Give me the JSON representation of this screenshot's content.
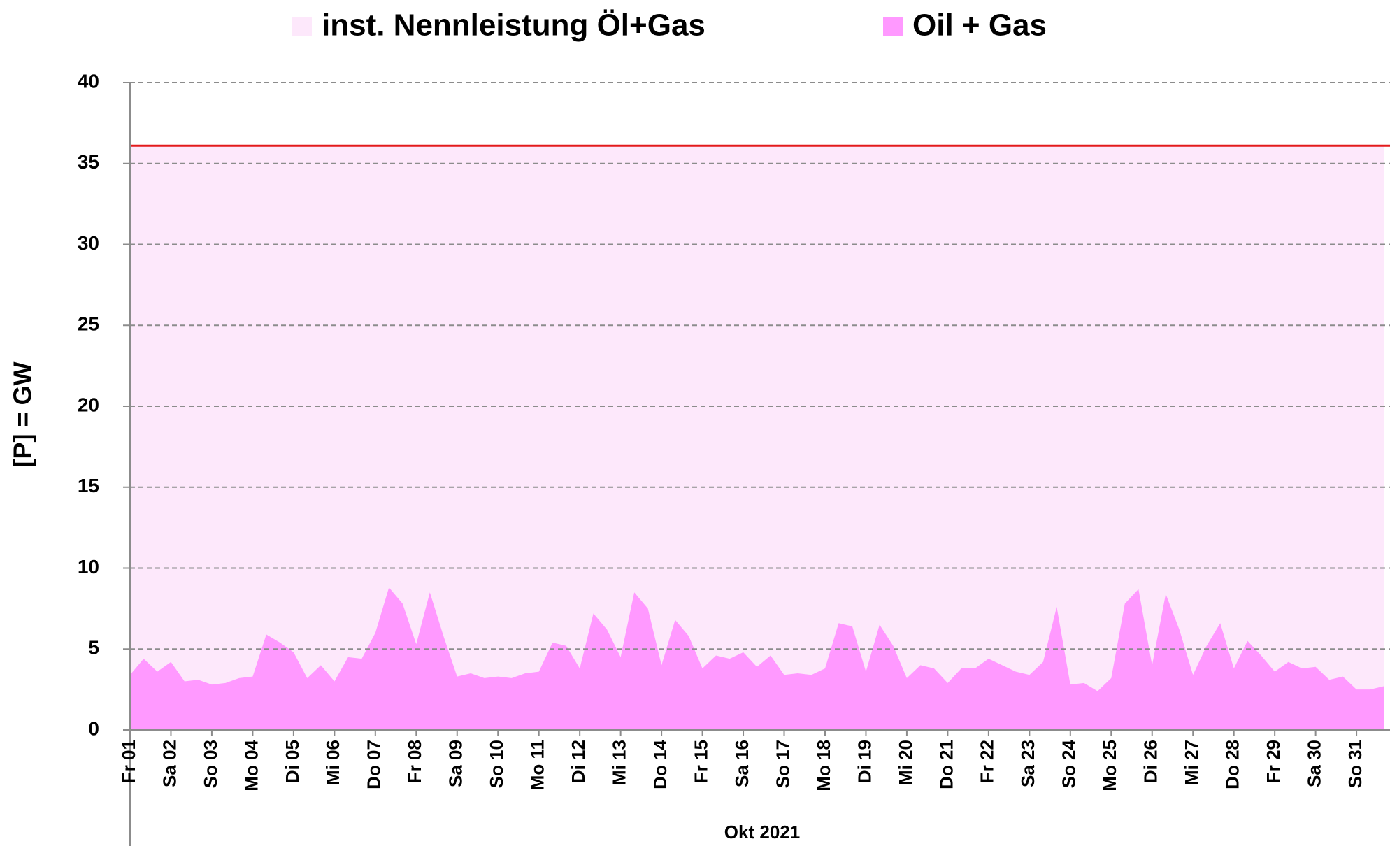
{
  "chart_data": {
    "type": "area",
    "x_label": "Okt 2021",
    "y_label": "[P]  = GW",
    "legend": "top",
    "grid": true,
    "ylim": [
      0,
      40
    ],
    "yticks": [
      0,
      5,
      10,
      15,
      20,
      25,
      30,
      35,
      40
    ],
    "categories": [
      "Fr 01",
      null,
      null,
      "Sa 02",
      null,
      null,
      "So 03",
      null,
      null,
      "Mo 04",
      null,
      null,
      "Di 05",
      null,
      null,
      "Mi 06",
      null,
      null,
      "Do 07",
      null,
      null,
      "Fr 08",
      null,
      null,
      "Sa 09",
      null,
      null,
      "So 10",
      null,
      null,
      "Mo 11",
      null,
      null,
      "Di 12",
      null,
      null,
      "Mi 13",
      null,
      null,
      "Do 14",
      null,
      null,
      "Fr 15",
      null,
      null,
      "Sa 16",
      null,
      null,
      "So 17",
      null,
      null,
      "Mo 18",
      null,
      null,
      "Di 19",
      null,
      null,
      "Mi 20",
      null,
      null,
      "Do 21",
      null,
      null,
      "Fr 22",
      null,
      null,
      "Sa 23",
      null,
      null,
      "So 24",
      null,
      null,
      "Mo 25",
      null,
      null,
      "Di 26",
      null,
      null,
      "Mi 27",
      null,
      null,
      "Do 28",
      null,
      null,
      "Fr 29",
      null,
      null,
      "Sa 30",
      null,
      null,
      "So 31",
      null,
      null
    ],
    "series": [
      {
        "name": "inst. Nennleistung Öl+Gas",
        "color": "#fde8fb",
        "line_color": "#e31a1c",
        "values": [
          36.1,
          36.1,
          36.1,
          36.1,
          36.1,
          36.1,
          36.1,
          36.1,
          36.1,
          36.1,
          36.1,
          36.1,
          36.1,
          36.1,
          36.1,
          36.1,
          36.1,
          36.1,
          36.1,
          36.1,
          36.1,
          36.1,
          36.1,
          36.1,
          36.1,
          36.1,
          36.1,
          36.1,
          36.1,
          36.1,
          36.1,
          36.1,
          36.1,
          36.1,
          36.1,
          36.1,
          36.1,
          36.1,
          36.1,
          36.1,
          36.1,
          36.1,
          36.1,
          36.1,
          36.1,
          36.1,
          36.1,
          36.1,
          36.1,
          36.1,
          36.1,
          36.1,
          36.1,
          36.1,
          36.1,
          36.1,
          36.1,
          36.1,
          36.1,
          36.1,
          36.1,
          36.1,
          36.1,
          36.1,
          36.1,
          36.1,
          36.1,
          36.1,
          36.1,
          36.1,
          36.1,
          36.1,
          36.1,
          36.1,
          36.1,
          36.1,
          36.1,
          36.1,
          36.1,
          36.1,
          36.1,
          36.1,
          36.1,
          36.1,
          36.1,
          36.1,
          36.1,
          36.1,
          36.1,
          36.1,
          36.1,
          36.1,
          36.1
        ]
      },
      {
        "name": "Oil + Gas",
        "color": "#ff99ff",
        "values": [
          3.4,
          4.4,
          3.6,
          4.2,
          3.0,
          3.1,
          2.8,
          2.9,
          3.2,
          3.3,
          5.9,
          5.4,
          4.8,
          3.2,
          4.0,
          3.0,
          4.5,
          4.4,
          6.0,
          8.8,
          7.8,
          5.3,
          8.5,
          5.8,
          3.3,
          3.5,
          3.2,
          3.3,
          3.2,
          3.5,
          3.6,
          5.4,
          5.2,
          3.8,
          7.2,
          6.2,
          4.5,
          8.5,
          7.5,
          4.0,
          6.8,
          5.8,
          3.8,
          4.6,
          4.4,
          4.8,
          3.9,
          4.6,
          3.4,
          3.5,
          3.4,
          3.8,
          6.6,
          6.4,
          3.6,
          6.5,
          5.2,
          3.2,
          4.0,
          3.8,
          2.9,
          3.8,
          3.8,
          4.4,
          4.0,
          3.6,
          3.4,
          4.2,
          7.6,
          2.8,
          2.9,
          2.4,
          3.2,
          7.8,
          8.7,
          4.0,
          8.4,
          6.2,
          3.4,
          5.2,
          6.6,
          3.8,
          5.5,
          4.6,
          3.6,
          4.2,
          3.8,
          3.9,
          3.1,
          3.3,
          2.5,
          2.5,
          2.7
        ]
      }
    ]
  }
}
